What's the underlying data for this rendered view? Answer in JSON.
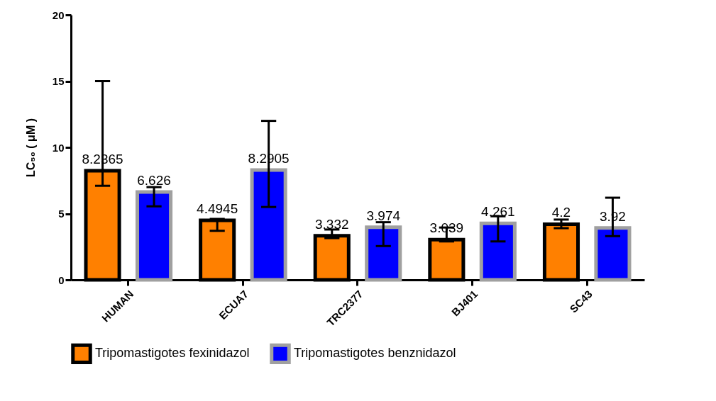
{
  "chart_data": {
    "type": "bar",
    "ylabel": "LC₅₀ ( μM )",
    "categories": [
      "HUMAN",
      "ECUA7",
      "TRC2377",
      "BJ401",
      "SC43"
    ],
    "series": [
      {
        "name": "Tripomastigotes fexinidazol",
        "color": "#ff8000",
        "values": [
          8.2365,
          4.4945,
          3.332,
          3.039,
          4.2
        ],
        "errors": [
          [
            7.1,
            15.0
          ],
          [
            3.7,
            4.6
          ],
          [
            3.15,
            3.8
          ],
          [
            2.9,
            3.95
          ],
          [
            3.9,
            4.55
          ]
        ]
      },
      {
        "name": "Tripomastigotes benznidazol",
        "color": "#0000ff",
        "values": [
          6.626,
          8.2905,
          3.974,
          4.261,
          3.92
        ],
        "errors": [
          [
            5.55,
            7.0
          ],
          [
            5.5,
            12.0
          ],
          [
            2.55,
            4.35
          ],
          [
            2.9,
            4.8
          ],
          [
            3.3,
            6.2
          ]
        ]
      }
    ],
    "data_labels": true,
    "ylim": [
      0,
      20
    ],
    "yticks": [
      0,
      5,
      10,
      15,
      20
    ],
    "grid": false,
    "legend": "bottom"
  }
}
